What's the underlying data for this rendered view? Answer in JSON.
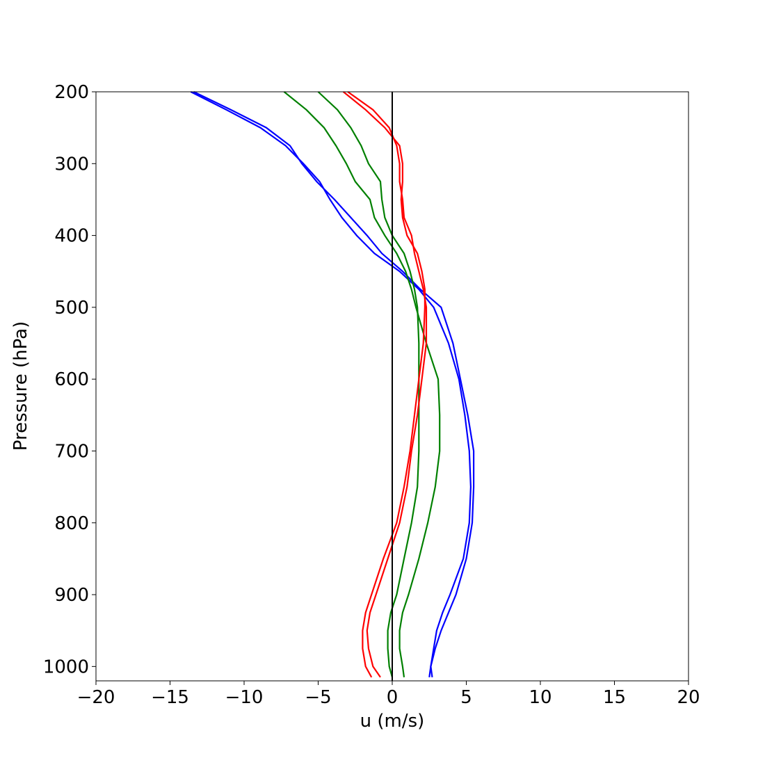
{
  "chart_data": {
    "type": "line",
    "xlabel": "u (m/s)",
    "ylabel": "Pressure (hPa)",
    "y": [
      200,
      225,
      250,
      275,
      300,
      325,
      350,
      375,
      400,
      425,
      450,
      475,
      500,
      550,
      600,
      650,
      700,
      750,
      800,
      850,
      900,
      925,
      950,
      975,
      1000,
      1015
    ],
    "series": [
      {
        "color": "#0000ff",
        "values": [
          -13.6,
          -11.2,
          -8.9,
          -7.2,
          -6.0,
          -4.9,
          -4.2,
          -3.4,
          -2.4,
          -1.2,
          0.5,
          1.8,
          2.8,
          3.8,
          4.5,
          4.9,
          5.2,
          5.3,
          5.2,
          4.8,
          3.9,
          3.4,
          3.0,
          2.8,
          2.6,
          2.5
        ]
      },
      {
        "color": "#0000ff",
        "values": [
          -13.4,
          -10.9,
          -8.5,
          -6.9,
          -6.1,
          -5.1,
          -3.9,
          -2.8,
          -1.7,
          -0.7,
          0.7,
          1.9,
          3.3,
          4.1,
          4.6,
          5.1,
          5.5,
          5.5,
          5.4,
          5.0,
          4.3,
          3.8,
          3.3,
          2.9,
          2.6,
          2.7
        ]
      },
      {
        "color": "#008000",
        "values": [
          -7.3,
          -5.8,
          -4.6,
          -3.8,
          -3.1,
          -2.5,
          -1.5,
          -1.2,
          -0.5,
          0.3,
          0.9,
          1.3,
          1.6,
          2.3,
          3.1,
          3.2,
          3.2,
          2.9,
          2.4,
          1.8,
          1.1,
          0.7,
          0.5,
          0.5,
          0.7,
          0.8
        ]
      },
      {
        "color": "#008000",
        "values": [
          -5.0,
          -3.7,
          -2.8,
          -2.1,
          -1.6,
          -0.8,
          -0.7,
          -0.5,
          0.0,
          0.8,
          1.2,
          1.5,
          1.7,
          1.8,
          1.8,
          1.8,
          1.8,
          1.7,
          1.3,
          0.8,
          0.3,
          -0.1,
          -0.3,
          -0.3,
          -0.2,
          0.0
        ]
      },
      {
        "color": "#ff0000",
        "values": [
          -3.3,
          -1.8,
          -0.5,
          0.5,
          0.7,
          0.7,
          0.6,
          0.7,
          1.0,
          1.7,
          2.0,
          2.2,
          2.2,
          2.1,
          1.8,
          1.5,
          1.2,
          0.8,
          0.3,
          -0.6,
          -1.4,
          -1.8,
          -2.0,
          -2.0,
          -1.8,
          -1.4
        ]
      },
      {
        "color": "#ff0000",
        "values": [
          -3.0,
          -1.3,
          -0.2,
          0.3,
          0.5,
          0.5,
          0.7,
          0.8,
          1.3,
          1.5,
          1.8,
          2.1,
          2.3,
          2.3,
          2.0,
          1.7,
          1.3,
          1.0,
          0.5,
          -0.3,
          -1.1,
          -1.5,
          -1.7,
          -1.6,
          -1.3,
          -0.8
        ]
      }
    ],
    "vline": 0,
    "vline_color": "#000000",
    "xlim": [
      -20,
      20
    ],
    "xticks": [
      {
        "value": -20,
        "label": "−20"
      },
      {
        "value": -15,
        "label": "−15"
      },
      {
        "value": -10,
        "label": "−10"
      },
      {
        "value": -5,
        "label": "−5"
      },
      0,
      5,
      10,
      15,
      20
    ],
    "ylim": [
      1020,
      200
    ],
    "yticks": [
      200,
      300,
      400,
      500,
      600,
      700,
      800,
      900,
      1000
    ]
  }
}
